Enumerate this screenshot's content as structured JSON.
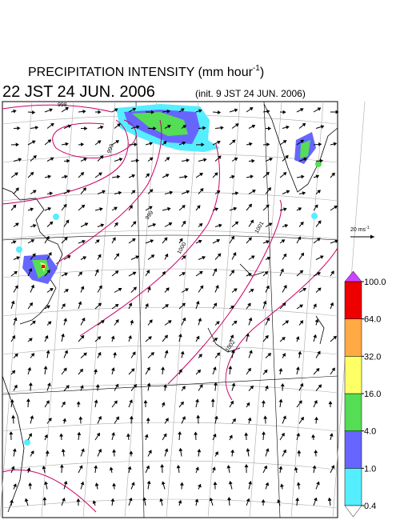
{
  "header": {
    "title": "PRECIPITATION INTENSITY (mm hour",
    "title_exponent": "-1",
    "title_close": ")",
    "valid_time": "22 JST 24 JUN. 2006",
    "init_time": "(init. 9 JST 24 JUN. 2006)"
  },
  "map": {
    "contour_labels": [
      "998",
      "999",
      "999",
      "1000",
      "1001",
      "1002"
    ]
  },
  "vector_scale": {
    "label": "20 ms",
    "exponent": "-1"
  },
  "colorbar": {
    "levels": [
      {
        "value": 0.4,
        "label": "0.4"
      },
      {
        "value": 1,
        "label": "1.0"
      },
      {
        "value": 4,
        "label": "4.0"
      },
      {
        "value": 16,
        "label": "16.0"
      },
      {
        "value": 32,
        "label": "32.0"
      },
      {
        "value": 64,
        "label": "64.0"
      },
      {
        "value": 100,
        "label": "100.0"
      }
    ],
    "colors": [
      "#55eeff",
      "#6666ff",
      "#55dd55",
      "#ffff66",
      "#ffaa44",
      "#ee0000"
    ],
    "under_color": "#ffffff",
    "over_color": "#cc44ff"
  }
}
